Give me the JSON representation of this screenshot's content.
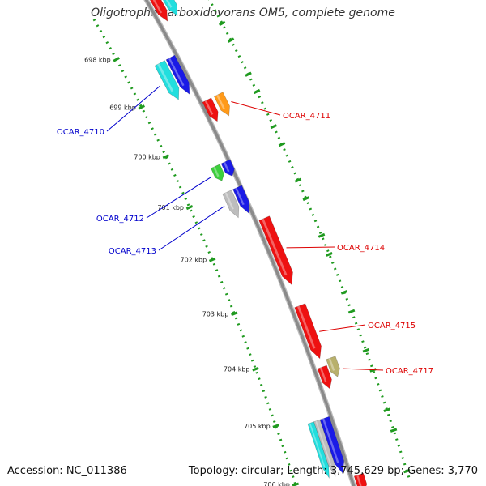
{
  "title": "Oligotropha carboxidovorans OM5, complete genome",
  "footer": {
    "accession": "Accession: NC_011386",
    "stats": "Topology: circular; Length: 3,745,629 bp; Genes: 3,770"
  },
  "colors": {
    "backbone": "#8a8a8a",
    "tick_dots": "#1f9a1f",
    "label_blue": "#0000cc",
    "label_red": "#dd0000",
    "red": "#ee1111",
    "blue": "#1a1ae6",
    "cyan": "#22dede",
    "orange": "#ff9a1a",
    "green": "#3ccf3c",
    "gray": "#bdbdbd",
    "khaki": "#b8b06c"
  },
  "ticks": [
    "698 kbp",
    "699 kbp",
    "700 kbp",
    "701 kbp",
    "702 kbp",
    "703 kbp",
    "704 kbp",
    "705 kbp",
    "706 kbp"
  ],
  "gene_labels": [
    {
      "id": "OCAR_4710",
      "strand": "minus"
    },
    {
      "id": "OCAR_4711",
      "strand": "plus"
    },
    {
      "id": "OCAR_4712",
      "strand": "minus"
    },
    {
      "id": "OCAR_4713",
      "strand": "minus"
    },
    {
      "id": "OCAR_4714",
      "strand": "plus"
    },
    {
      "id": "OCAR_4715",
      "strand": "plus"
    },
    {
      "id": "OCAR_4717",
      "strand": "plus"
    }
  ]
}
